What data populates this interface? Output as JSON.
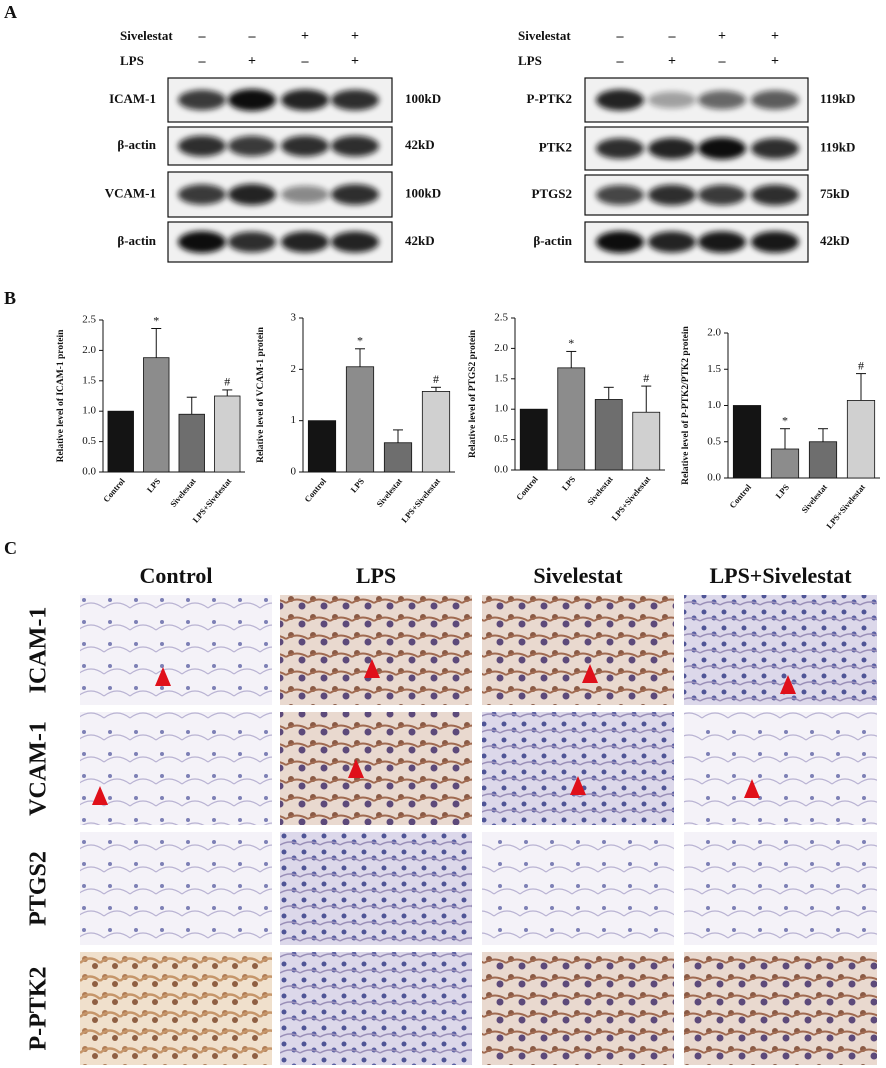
{
  "panel_labels": [
    "A",
    "B",
    "C"
  ],
  "western_blot": {
    "left": {
      "treatments": [
        {
          "name": "Sivelestat",
          "signs": [
            "–",
            "–",
            "+",
            "+"
          ]
        },
        {
          "name": "LPS",
          "signs": [
            "–",
            "+",
            "–",
            "+"
          ]
        }
      ],
      "rows": [
        {
          "protein": "ICAM-1",
          "size": "100kD"
        },
        {
          "protein": "β-actin",
          "size": "42kD"
        },
        {
          "protein": "VCAM-1",
          "size": "100kD"
        },
        {
          "protein": "β-actin",
          "size": "42kD"
        }
      ]
    },
    "right": {
      "treatments": [
        {
          "name": "Sivelestat",
          "signs": [
            "–",
            "–",
            "+",
            "+"
          ]
        },
        {
          "name": "LPS",
          "signs": [
            "–",
            "+",
            "–",
            "+"
          ]
        }
      ],
      "rows": [
        {
          "protein": "P-PTK2",
          "size": "119kD"
        },
        {
          "protein": "PTK2",
          "size": "119kD"
        },
        {
          "protein": "PTGS2",
          "size": "75kD"
        },
        {
          "protein": "β-actin",
          "size": "42kD"
        }
      ]
    }
  },
  "chart_data": [
    {
      "type": "bar",
      "y_label": "Relative level of ICAM-1 protein",
      "categories": [
        "Control",
        "LPS",
        "Sivelestat",
        "LPS+Sivelestat"
      ],
      "values": [
        1.0,
        1.88,
        0.95,
        1.25
      ],
      "errors": [
        0,
        0.48,
        0.28,
        0.1
      ],
      "annotations": [
        null,
        "*",
        null,
        "#"
      ],
      "colors": [
        "#141414",
        "#8c8c8c",
        "#6e6e6e",
        "#d0d0d0"
      ],
      "ylim": [
        0,
        2.5
      ],
      "yticks": [
        {
          "value": 0,
          "label": "0.0"
        },
        {
          "value": 0.5,
          "label": "0.5"
        },
        {
          "value": 1,
          "label": "1.0"
        },
        {
          "value": 1.5,
          "label": "1.5"
        },
        {
          "value": 2,
          "label": "2.0"
        },
        {
          "value": 2.5,
          "label": "2.5"
        }
      ]
    },
    {
      "type": "bar",
      "y_label": "Relative level of VCAM-1 protein",
      "categories": [
        "Control",
        "LPS",
        "Sivelestat",
        "LPS+Sivelestat"
      ],
      "values": [
        1.0,
        2.05,
        0.57,
        1.57
      ],
      "errors": [
        0,
        0.35,
        0.25,
        0.08
      ],
      "annotations": [
        null,
        "*",
        null,
        "#"
      ],
      "colors": [
        "#141414",
        "#8c8c8c",
        "#6e6e6e",
        "#d0d0d0"
      ],
      "ylim": [
        0,
        3
      ],
      "yticks": [
        0,
        1,
        2,
        3
      ]
    },
    {
      "type": "bar",
      "y_label": "Relative level of PTGS2 protein",
      "categories": [
        "Control",
        "LPS",
        "Sivelestat",
        "LPS+Sivelestat"
      ],
      "values": [
        1.0,
        1.68,
        1.16,
        0.95
      ],
      "errors": [
        0,
        0.27,
        0.2,
        0.43
      ],
      "annotations": [
        null,
        "*",
        null,
        "#"
      ],
      "colors": [
        "#141414",
        "#8c8c8c",
        "#6e6e6e",
        "#d0d0d0"
      ],
      "ylim": [
        0,
        2.5
      ],
      "yticks": [
        {
          "value": 0,
          "label": "0.0"
        },
        {
          "value": 0.5,
          "label": "0.5"
        },
        {
          "value": 1,
          "label": "1.0"
        },
        {
          "value": 1.5,
          "label": "1.5"
        },
        {
          "value": 2,
          "label": "2.0"
        },
        {
          "value": 2.5,
          "label": "2.5"
        }
      ]
    },
    {
      "type": "bar",
      "y_label": "Relative level of P-PTK2/PTK2 protein",
      "categories": [
        "Control",
        "LPS",
        "Sivelestat",
        "LPS+Sivelestat"
      ],
      "values": [
        1.0,
        0.4,
        0.5,
        1.07
      ],
      "errors": [
        0,
        0.28,
        0.18,
        0.37
      ],
      "annotations": [
        null,
        "*",
        null,
        "#"
      ],
      "colors": [
        "#141414",
        "#8c8c8c",
        "#6e6e6e",
        "#d0d0d0"
      ],
      "ylim": [
        0,
        2
      ],
      "yticks": [
        {
          "value": 0,
          "label": "0.0"
        },
        {
          "value": 0.5,
          "label": "0.5"
        },
        {
          "value": 1,
          "label": "1.0"
        },
        {
          "value": 1.5,
          "label": "1.5"
        },
        {
          "value": 2,
          "label": "2.0"
        }
      ]
    }
  ],
  "ihc": {
    "columns": [
      "Control",
      "LPS",
      "Sivelestat",
      "LPS+Sivelestat"
    ],
    "rows": [
      "ICAM-1",
      "VCAM-1",
      "PTGS2",
      "P-PTK2"
    ]
  }
}
